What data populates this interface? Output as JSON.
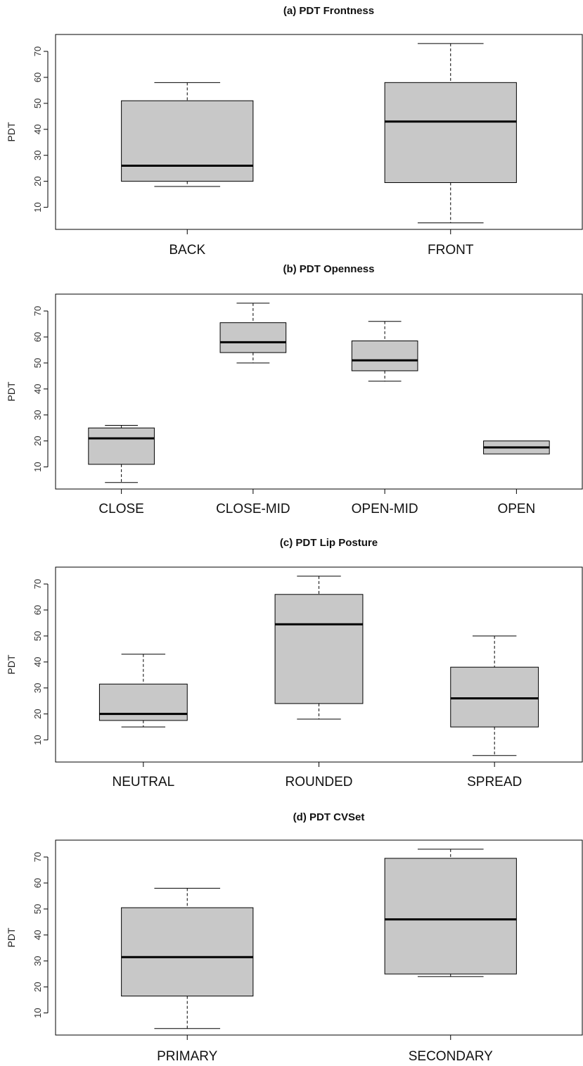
{
  "chart_data": [
    {
      "type": "box",
      "title": "(a) PDT Frontness",
      "ylabel": "PDT",
      "ylim": [
        1.5,
        76.5
      ],
      "yticks": [
        10,
        20,
        30,
        40,
        50,
        60,
        70
      ],
      "categories": [
        "BACK",
        "FRONT"
      ],
      "boxes": [
        {
          "category": "BACK",
          "min": 18,
          "q1": 20,
          "median": 26,
          "q3": 51,
          "max": 58
        },
        {
          "category": "FRONT",
          "min": 4,
          "q1": 19.5,
          "median": 43,
          "q3": 58,
          "max": 73
        }
      ]
    },
    {
      "type": "box",
      "title": "(b) PDT Openness",
      "ylabel": "PDT",
      "ylim": [
        1.5,
        76.5
      ],
      "yticks": [
        10,
        20,
        30,
        40,
        50,
        60,
        70
      ],
      "categories": [
        "CLOSE",
        "CLOSE-MID",
        "OPEN-MID",
        "OPEN"
      ],
      "boxes": [
        {
          "category": "CLOSE",
          "min": 4,
          "q1": 11,
          "median": 21,
          "q3": 25,
          "max": 26
        },
        {
          "category": "CLOSE-MID",
          "min": 50,
          "q1": 54,
          "median": 58,
          "q3": 65.5,
          "max": 73
        },
        {
          "category": "OPEN-MID",
          "min": 43,
          "q1": 47,
          "median": 51,
          "q3": 58.5,
          "max": 66
        },
        {
          "category": "OPEN",
          "min": 15,
          "q1": 15,
          "median": 17.5,
          "q3": 20,
          "max": 20
        }
      ]
    },
    {
      "type": "box",
      "title": "(c) PDT Lip Posture",
      "ylabel": "PDT",
      "ylim": [
        1.5,
        76.5
      ],
      "yticks": [
        10,
        20,
        30,
        40,
        50,
        60,
        70
      ],
      "categories": [
        "NEUTRAL",
        "ROUNDED",
        "SPREAD"
      ],
      "boxes": [
        {
          "category": "NEUTRAL",
          "min": 15,
          "q1": 17.5,
          "median": 20,
          "q3": 31.5,
          "max": 43
        },
        {
          "category": "ROUNDED",
          "min": 18,
          "q1": 24,
          "median": 54.5,
          "q3": 66,
          "max": 73
        },
        {
          "category": "SPREAD",
          "min": 4,
          "q1": 15,
          "median": 26,
          "q3": 38,
          "max": 50
        }
      ]
    },
    {
      "type": "box",
      "title": "(d) PDT CVSet",
      "ylabel": "PDT",
      "ylim": [
        1.5,
        76.5
      ],
      "yticks": [
        10,
        20,
        30,
        40,
        50,
        60,
        70
      ],
      "categories": [
        "PRIMARY",
        "SECONDARY"
      ],
      "boxes": [
        {
          "category": "PRIMARY",
          "min": 4,
          "q1": 16.5,
          "median": 31.5,
          "q3": 50.5,
          "max": 58
        },
        {
          "category": "SECONDARY",
          "min": 24,
          "q1": 25,
          "median": 46,
          "q3": 69.5,
          "max": 73
        }
      ]
    }
  ],
  "colors": {
    "box_fill": "#c8c8c8",
    "stroke": "#000000",
    "frame": "#000000",
    "text": "#111111"
  }
}
